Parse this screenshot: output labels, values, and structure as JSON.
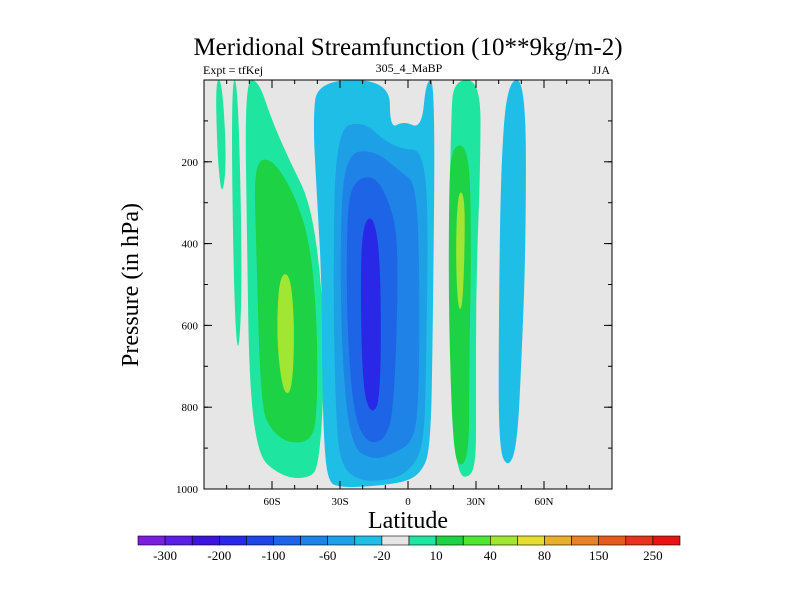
{
  "chart_data": {
    "type": "contour",
    "title": "Meridional Streamfunction (10**9kg/m-2)",
    "left_label": "Expt = tfKej",
    "center_label": "305_4_MaBP",
    "right_label": "JJA",
    "xlabel": "Latitude",
    "ylabel": "Pressure (in hPa)",
    "xlim": [
      -90,
      90
    ],
    "ylim": [
      1000,
      0
    ],
    "x_ticks": [
      {
        "value": -60,
        "label": "60S"
      },
      {
        "value": -30,
        "label": "30S"
      },
      {
        "value": 0,
        "label": "0"
      },
      {
        "value": 30,
        "label": "30N"
      },
      {
        "value": 60,
        "label": "60N"
      }
    ],
    "y_ticks": [
      {
        "value": 200,
        "label": "200"
      },
      {
        "value": 400,
        "label": "400"
      },
      {
        "value": 600,
        "label": "600"
      },
      {
        "value": 800,
        "label": "800"
      },
      {
        "value": 1000,
        "label": "1000"
      }
    ],
    "background_color": "#e6e6e6",
    "colorbar": {
      "colors": [
        "#7a1ee0",
        "#5a1ee6",
        "#3c14dc",
        "#2828e6",
        "#1e46e6",
        "#1e64e6",
        "#1e82e6",
        "#1ea0e6",
        "#1ebee6",
        "#e6e6e6",
        "#1ee6a0",
        "#1ed246",
        "#50e632",
        "#a0e632",
        "#e6dc32",
        "#e6af2d",
        "#e68228",
        "#e65a1e",
        "#e6321e",
        "#e61414"
      ],
      "labels": [
        "-300",
        "-200",
        "-100",
        "-60",
        "-20",
        "10",
        "40",
        "80",
        "150",
        "250"
      ]
    },
    "regions": [
      {
        "name": "sh-outer-positive",
        "level": 10,
        "points": [
          [
            -78,
            0
          ],
          [
            -75,
            0
          ],
          [
            -73,
            500
          ],
          [
            -75,
            700
          ],
          [
            -77,
            500
          ]
        ]
      },
      {
        "name": "sh-positive-cell",
        "level": 10,
        "points": [
          [
            -72,
            0
          ],
          [
            -66,
            0
          ],
          [
            -60,
            100
          ],
          [
            -52,
            200
          ],
          [
            -43,
            300
          ],
          [
            -38,
            500
          ],
          [
            -37,
            700
          ],
          [
            -38,
            850
          ],
          [
            -40,
            950
          ],
          [
            -43,
            970
          ],
          [
            -50,
            975
          ],
          [
            -58,
            960
          ],
          [
            -66,
            920
          ],
          [
            -70,
            750
          ],
          [
            -71,
            400
          ]
        ]
      },
      {
        "name": "sh-positive-cell",
        "level": 40,
        "points": [
          [
            -68,
            200
          ],
          [
            -60,
            190
          ],
          [
            -50,
            280
          ],
          [
            -43,
            400
          ],
          [
            -40,
            600
          ],
          [
            -40,
            800
          ],
          [
            -42,
            880
          ],
          [
            -52,
            890
          ],
          [
            -60,
            860
          ],
          [
            -65,
            800
          ],
          [
            -67,
            400
          ]
        ]
      },
      {
        "name": "sh-positive-cell",
        "level": 80,
        "points": [
          [
            -57,
            480
          ],
          [
            -52,
            470
          ],
          [
            -50,
            600
          ],
          [
            -51,
            760
          ],
          [
            -55,
            770
          ],
          [
            -58,
            640
          ]
        ]
      },
      {
        "name": "sh-outer-positive",
        "level": 10,
        "points": [
          [
            -85,
            0
          ],
          [
            -82,
            0
          ],
          [
            -80,
            200
          ],
          [
            -82,
            290
          ],
          [
            -84,
            200
          ]
        ]
      },
      {
        "name": "sh-negative-cell",
        "level": -10,
        "points": [
          [
            -40,
            0
          ],
          [
            -8,
            0
          ],
          [
            -8,
            120
          ],
          [
            -2,
            100
          ],
          [
            6,
            120
          ],
          [
            8,
            0
          ],
          [
            12,
            0
          ],
          [
            11,
            600
          ],
          [
            10,
            900
          ],
          [
            6,
            960
          ],
          [
            -2,
            985
          ],
          [
            -20,
            995
          ],
          [
            -30,
            995
          ],
          [
            -35,
            985
          ],
          [
            -37,
            900
          ],
          [
            -38,
            700
          ],
          [
            -38,
            500
          ],
          [
            -40,
            300
          ],
          [
            -42,
            100
          ]
        ]
      },
      {
        "name": "sh-negative-cell",
        "level": -20,
        "points": [
          [
            -32,
            120
          ],
          [
            -20,
            100
          ],
          [
            -10,
            150
          ],
          [
            -2,
            170
          ],
          [
            6,
            170
          ],
          [
            9,
            300
          ],
          [
            8,
            700
          ],
          [
            7,
            900
          ],
          [
            0,
            960
          ],
          [
            -10,
            980
          ],
          [
            -22,
            980
          ],
          [
            -30,
            940
          ],
          [
            -32,
            800
          ],
          [
            -33,
            500
          ]
        ]
      },
      {
        "name": "sh-negative-cell",
        "level": -40,
        "points": [
          [
            -28,
            180
          ],
          [
            -15,
            170
          ],
          [
            -2,
            230
          ],
          [
            3,
            250
          ],
          [
            5,
            400
          ],
          [
            5,
            750
          ],
          [
            3,
            880
          ],
          [
            -5,
            910
          ],
          [
            -15,
            930
          ],
          [
            -25,
            900
          ],
          [
            -29,
            700
          ],
          [
            -30,
            400
          ]
        ]
      },
      {
        "name": "sh-negative-cell",
        "level": -60,
        "points": [
          [
            -25,
            250
          ],
          [
            -15,
            230
          ],
          [
            -8,
            300
          ],
          [
            -4,
            400
          ],
          [
            -6,
            800
          ],
          [
            -10,
            880
          ],
          [
            -18,
            890
          ],
          [
            -24,
            820
          ],
          [
            -27,
            600
          ],
          [
            -27,
            350
          ]
        ]
      },
      {
        "name": "sh-negative-cell",
        "level": -100,
        "points": [
          [
            -20,
            350
          ],
          [
            -15,
            330
          ],
          [
            -12,
            450
          ],
          [
            -12,
            780
          ],
          [
            -16,
            820
          ],
          [
            -20,
            760
          ],
          [
            -21,
            500
          ]
        ]
      },
      {
        "name": "nh-negative-cell",
        "level": -10,
        "points": [
          [
            44,
            0
          ],
          [
            52,
            0
          ],
          [
            52,
            400
          ],
          [
            50,
            700
          ],
          [
            48,
            900
          ],
          [
            44,
            950
          ],
          [
            40,
            900
          ],
          [
            40,
            600
          ],
          [
            41,
            200
          ]
        ]
      },
      {
        "name": "nh-positive-cell",
        "level": 10,
        "points": [
          [
            20,
            0
          ],
          [
            32,
            0
          ],
          [
            32,
            200
          ],
          [
            30,
            500
          ],
          [
            30,
            800
          ],
          [
            30,
            920
          ],
          [
            28,
            970
          ],
          [
            22,
            970
          ],
          [
            19,
            800
          ],
          [
            18,
            400
          ],
          [
            19,
            100
          ]
        ]
      },
      {
        "name": "nh-positive-cell",
        "level": 40,
        "points": [
          [
            19,
            160
          ],
          [
            27,
            160
          ],
          [
            28,
            400
          ],
          [
            27,
            700
          ],
          [
            27,
            900
          ],
          [
            24,
            950
          ],
          [
            20,
            920
          ],
          [
            18,
            600
          ],
          [
            18,
            300
          ]
        ]
      },
      {
        "name": "nh-positive-cell",
        "level": 80,
        "points": [
          [
            22,
            270
          ],
          [
            25,
            280
          ],
          [
            25,
            420
          ],
          [
            24,
            560
          ],
          [
            22,
            560
          ],
          [
            21,
            420
          ]
        ]
      }
    ]
  }
}
